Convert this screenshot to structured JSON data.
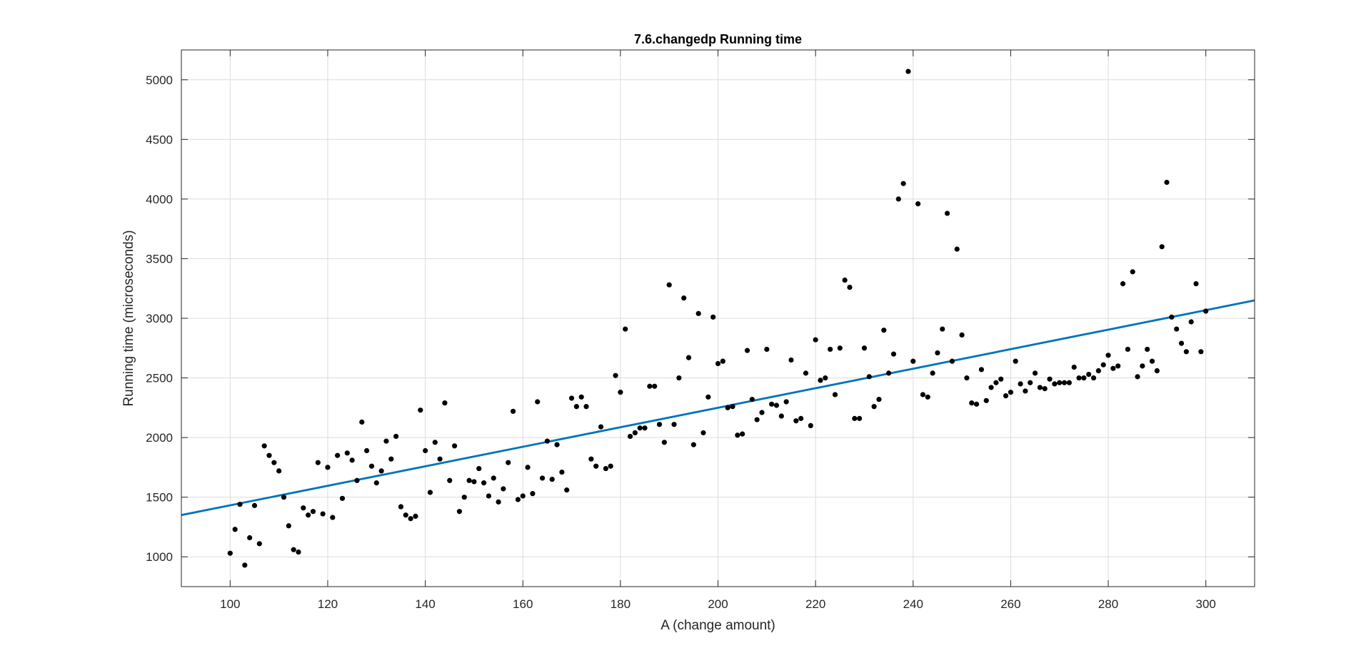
{
  "chart_data": {
    "type": "scatter",
    "title": "7.6.changedp Running time",
    "xlabel": "A (change amount)",
    "ylabel": "Running time (microseconds)",
    "xlim": [
      90,
      310
    ],
    "ylim": [
      750,
      5250
    ],
    "xticks": [
      100,
      120,
      140,
      160,
      180,
      200,
      220,
      240,
      260,
      280,
      300
    ],
    "yticks": [
      1000,
      1500,
      2000,
      2500,
      3000,
      3500,
      4000,
      4500,
      5000
    ],
    "grid": true,
    "legend": "none",
    "series": [
      {
        "kind": "scatter",
        "color": "#000000",
        "x": [
          100,
          101,
          102,
          103,
          104,
          105,
          106,
          107,
          108,
          109,
          110,
          111,
          112,
          113,
          114,
          115,
          116,
          117,
          118,
          119,
          120,
          121,
          122,
          123,
          124,
          125,
          126,
          127,
          128,
          129,
          130,
          131,
          132,
          133,
          134,
          135,
          136,
          137,
          138,
          139,
          140,
          141,
          142,
          143,
          144,
          145,
          146,
          147,
          148,
          149,
          150,
          151,
          152,
          153,
          154,
          155,
          156,
          157,
          158,
          159,
          160,
          161,
          162,
          163,
          164,
          165,
          166,
          167,
          168,
          169,
          170,
          171,
          172,
          173,
          174,
          175,
          176,
          177,
          178,
          179,
          180,
          181,
          182,
          183,
          184,
          185,
          186,
          187,
          188,
          189,
          190,
          191,
          192,
          193,
          194,
          195,
          196,
          197,
          198,
          199,
          200,
          201,
          202,
          203,
          204,
          205,
          206,
          207,
          208,
          209,
          210,
          211,
          212,
          213,
          214,
          215,
          216,
          217,
          218,
          219,
          220,
          221,
          222,
          223,
          224,
          225,
          226,
          227,
          228,
          229,
          230,
          231,
          232,
          233,
          234,
          235,
          236,
          237,
          238,
          239,
          240,
          241,
          242,
          243,
          244,
          245,
          246,
          247,
          248,
          249,
          250,
          251,
          252,
          253,
          254,
          255,
          256,
          257,
          258,
          259,
          260,
          261,
          262,
          263,
          264,
          265,
          266,
          267,
          268,
          269,
          270,
          271,
          272,
          273,
          274,
          275,
          276,
          277,
          278,
          279,
          280,
          281,
          282,
          283,
          284,
          285,
          286,
          287,
          288,
          289,
          290,
          291,
          292,
          293,
          294,
          295,
          296,
          297,
          298,
          299,
          300
        ],
        "y": [
          1030,
          1230,
          1440,
          930,
          1160,
          1430,
          1110,
          1930,
          1850,
          1790,
          1720,
          1500,
          1260,
          1060,
          1040,
          1410,
          1350,
          1380,
          1790,
          1360,
          1750,
          1330,
          1850,
          1490,
          1870,
          1810,
          1640,
          2130,
          1890,
          1760,
          1620,
          1720,
          1970,
          1820,
          2010,
          1420,
          1350,
          1320,
          1340,
          2230,
          1890,
          1540,
          1960,
          1820,
          2290,
          1640,
          1930,
          1380,
          1500,
          1640,
          1630,
          1740,
          1620,
          1510,
          1660,
          1460,
          1570,
          1790,
          2220,
          1480,
          1510,
          1750,
          1530,
          2300,
          1660,
          1970,
          1650,
          1940,
          1710,
          1560,
          2330,
          2260,
          2340,
          2260,
          1820,
          1760,
          2090,
          1740,
          1760,
          2520,
          2380,
          2910,
          2010,
          2040,
          2080,
          2080,
          2430,
          2430,
          2110,
          1960,
          3280,
          2110,
          2500,
          3170,
          2670,
          1940,
          3040,
          2040,
          2340,
          3010,
          2620,
          2640,
          2250,
          2260,
          2020,
          2030,
          2730,
          2320,
          2150,
          2210,
          2740,
          2280,
          2270,
          2180,
          2300,
          2650,
          2140,
          2160,
          2540,
          2100,
          2820,
          2480,
          2500,
          2740,
          2360,
          2750,
          3320,
          3260,
          2160,
          2160,
          2750,
          2510,
          2260,
          2320,
          2900,
          2540,
          2700,
          4000,
          4130,
          5070,
          2640,
          3960,
          2360,
          2340,
          2540,
          2710,
          2910,
          3880,
          2640,
          3580,
          2860,
          2500,
          2290,
          2280,
          2570,
          2310,
          2420,
          2460,
          2490,
          2350,
          2380,
          2640,
          2450,
          2390,
          2460,
          2540,
          2420,
          2410,
          2490,
          2450,
          2460,
          2460,
          2460,
          2590,
          2500,
          2500,
          2530,
          2500,
          2560,
          2610,
          2690,
          2580,
          2600,
          3290,
          2740,
          3390,
          2510,
          2600,
          2740,
          2640,
          2560,
          3600,
          4140,
          3010,
          2910,
          2790,
          2720,
          2970,
          3290,
          2720,
          3060
        ]
      },
      {
        "kind": "fit-line",
        "color": "#0072BD",
        "x": [
          90,
          310
        ],
        "y": [
          1350,
          3150
        ]
      }
    ]
  }
}
